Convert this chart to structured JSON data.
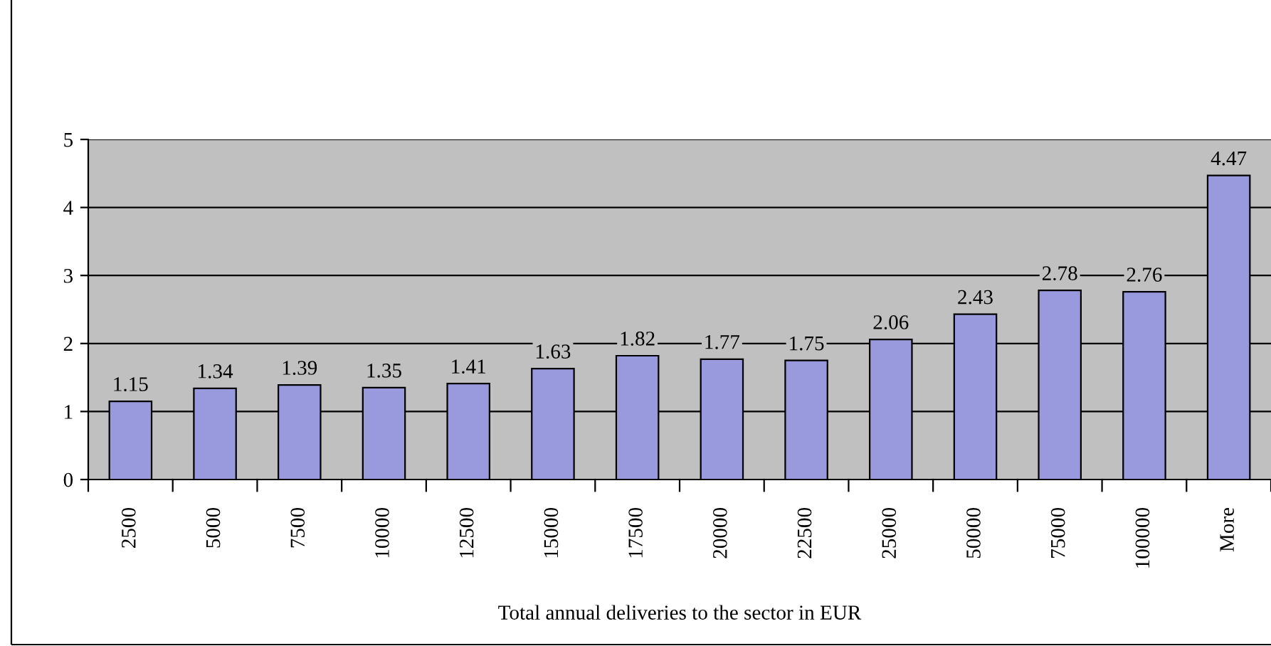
{
  "chart_data": {
    "type": "bar",
    "xlabel": "Total annual deliveries to the sector in EUR",
    "categories": [
      "2500",
      "5000",
      "7500",
      "10000",
      "12500",
      "15000",
      "17500",
      "20000",
      "22500",
      "25000",
      "50000",
      "75000",
      "100000",
      "More"
    ],
    "values": [
      1.15,
      1.34,
      1.39,
      1.35,
      1.41,
      1.63,
      1.82,
      1.77,
      1.75,
      2.06,
      2.43,
      2.78,
      2.76,
      4.47
    ],
    "color": "#9999dd",
    "ylim": [
      0,
      5
    ],
    "yticks": [
      0,
      1,
      2,
      3,
      4,
      5
    ],
    "grid": "y",
    "data_labels": true,
    "legend": false
  }
}
